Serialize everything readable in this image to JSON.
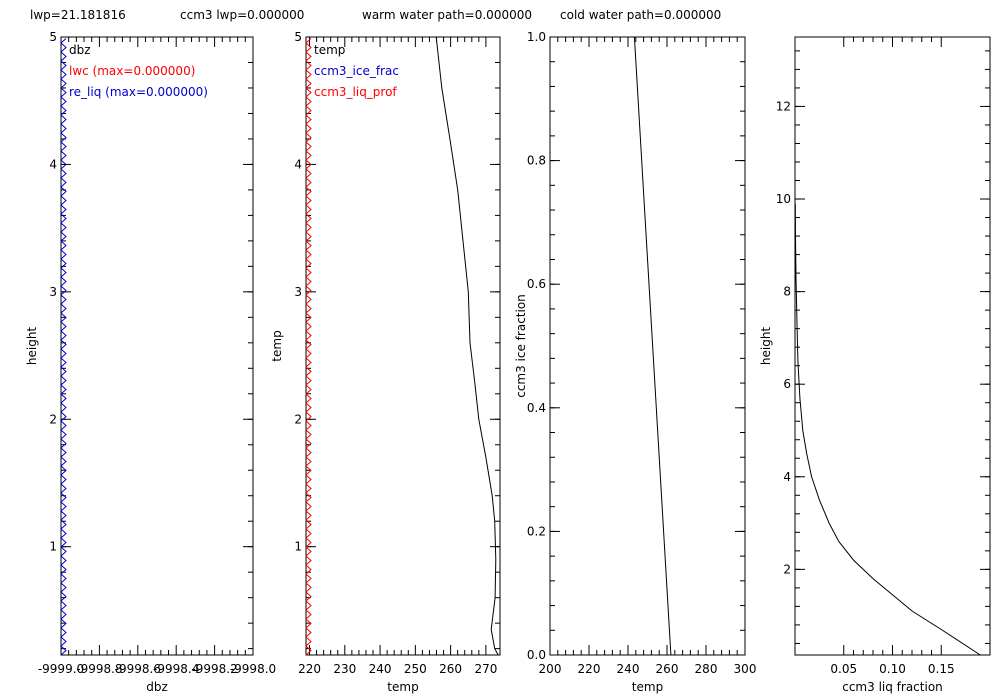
{
  "header": {
    "lwp": "lwp=21.181816",
    "ccm3_lwp": "ccm3 lwp=0.000000",
    "warm_water_path": "warm water path=0.000000",
    "cold_water_path": "cold water path=0.000000"
  },
  "colors": {
    "black": "#000000",
    "red": "#ff0000",
    "blue": "#0000cc",
    "background": "#ffffff"
  },
  "chart_data": [
    {
      "type": "line",
      "xlabel": "dbz",
      "ylabel": "height",
      "xlim": [
        -9999.0,
        -9998.0
      ],
      "ylim": [
        0.15,
        5.0
      ],
      "xticklabels": [
        "-9999.0",
        "-9998.8",
        "-9998.6",
        "-9998.4",
        "-9998.2",
        "-9998.0"
      ],
      "yticks": [
        1,
        2,
        3,
        4,
        5
      ],
      "legend": [
        {
          "label": "dbz",
          "color": "#000000"
        },
        {
          "label": "lwc (max=0.000000)",
          "color": "#ff0000"
        },
        {
          "label": "re_liq (max=0.000000)",
          "color": "#0000cc"
        }
      ],
      "series": [
        {
          "name": "re_liq (max=0.000000)",
          "color": "#0000cc",
          "marker": "zigzag",
          "x_value": -9999.0
        }
      ]
    },
    {
      "type": "line",
      "xlabel": "temp",
      "ylabel": "temp",
      "xlim": [
        219,
        274
      ],
      "ylim": [
        0.15,
        5.0
      ],
      "xticks": [
        220,
        230,
        240,
        250,
        260,
        270
      ],
      "yticks": [
        1,
        2,
        3,
        4,
        5
      ],
      "legend": [
        {
          "label": "temp",
          "color": "#000000"
        },
        {
          "label": "ccm3_ice_frac",
          "color": "#0000cc"
        },
        {
          "label": "ccm3_liq_prof",
          "color": "#ff0000"
        }
      ],
      "series": [
        {
          "name": "temp",
          "color": "#000000",
          "x": [
            255.9,
            257.5,
            259.8,
            262.0,
            263.5,
            265.0,
            265.5,
            266.8,
            268.0,
            270.0,
            271.8,
            272.5,
            272.8,
            272.6,
            271.5,
            272.5,
            273.5
          ],
          "y": [
            5.0,
            4.6,
            4.2,
            3.8,
            3.4,
            3.0,
            2.6,
            2.3,
            2.0,
            1.7,
            1.4,
            1.2,
            0.9,
            0.6,
            0.35,
            0.2,
            0.15
          ]
        },
        {
          "name": "ccm3_liq_prof",
          "color": "#ff0000",
          "marker": "zigzag",
          "x_value": 219.0
        }
      ]
    },
    {
      "type": "line",
      "xlabel": "temp",
      "ylabel": "ccm3 ice fraction",
      "xlim": [
        200,
        300
      ],
      "ylim": [
        0.0,
        1.0
      ],
      "xticks": [
        200,
        220,
        240,
        260,
        280,
        300
      ],
      "yticks": [
        0.0,
        0.2,
        0.4,
        0.6,
        0.8,
        1.0
      ],
      "series": [
        {
          "name": "ice fraction",
          "color": "#000000",
          "x": [
            243.3,
            262.0
          ],
          "y": [
            1.0,
            0.0
          ]
        }
      ]
    },
    {
      "type": "line",
      "xlabel": "ccm3 liq fraction",
      "ylabel": "height",
      "xlim": [
        0.0,
        0.2
      ],
      "ylim": [
        0.15,
        13.5
      ],
      "xticks": [
        0.05,
        0.1,
        0.15
      ],
      "xticklabels": [
        "0.05",
        "0.10",
        "0.15"
      ],
      "yticks": [
        2,
        4,
        6,
        8,
        10,
        12
      ],
      "series": [
        {
          "name": "liq fraction",
          "color": "#000000",
          "x": [
            0.19,
            0.15,
            0.12,
            0.1,
            0.08,
            0.06,
            0.045,
            0.035,
            0.025,
            0.017,
            0.012,
            0.008,
            0.005,
            0.003,
            0.002,
            0.001,
            0.0005,
            0.0003
          ],
          "y": [
            0.15,
            0.7,
            1.1,
            1.45,
            1.8,
            2.2,
            2.6,
            3.0,
            3.5,
            4.0,
            4.5,
            5.0,
            5.7,
            6.5,
            7.3,
            8.3,
            9.2,
            9.9
          ]
        }
      ]
    }
  ]
}
